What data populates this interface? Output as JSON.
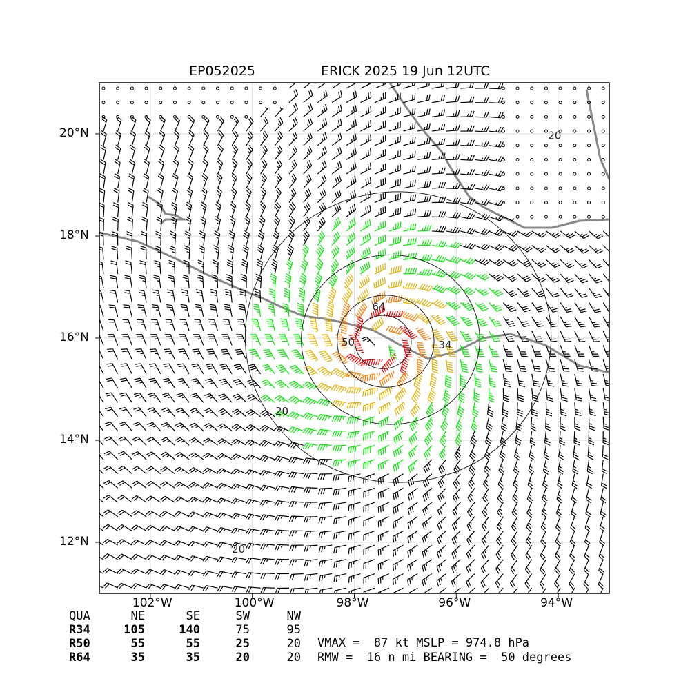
{
  "title": {
    "storm_id": "EP052025",
    "storm_label": "ERICK 2025 19 Jun 12UTC"
  },
  "map": {
    "extent": {
      "lon": [
        -103.0,
        -93.0
      ],
      "lat": [
        11.0,
        21.0
      ]
    },
    "lat_ticks": [
      {
        "value": 20,
        "label": "20°N"
      },
      {
        "value": 18,
        "label": "18°N"
      },
      {
        "value": 16,
        "label": "16°N"
      },
      {
        "value": 14,
        "label": "14°N"
      },
      {
        "value": 12,
        "label": "12°N"
      }
    ],
    "lon_ticks": [
      {
        "value": -102,
        "label": "102°W"
      },
      {
        "value": -100,
        "label": "100°W"
      },
      {
        "value": -98,
        "label": "98°W"
      },
      {
        "value": -96,
        "label": "96°W"
      },
      {
        "value": -94,
        "label": "94°W"
      }
    ],
    "grid": true,
    "coastline_color": "#888888",
    "storm_center": {
      "lon": -97.5,
      "lat": 15.9
    },
    "contours": [
      {
        "label": "64",
        "radius_deg": 0.55,
        "label_lon": -97.65,
        "label_lat": 16.55
      },
      {
        "label": "50",
        "radius_deg": 0.95,
        "label_lon": -98.25,
        "label_lat": 15.85
      },
      {
        "label": "34",
        "radius_deg": 1.75,
        "label_lon": -96.35,
        "label_lat": 15.8
      },
      {
        "label": "20",
        "radius_deg": 3.0,
        "label_lon": -99.55,
        "label_lat": 14.5
      },
      {
        "label": "20",
        "radius_deg": 0,
        "label_lon": -94.2,
        "label_lat": 19.9
      },
      {
        "label": "20",
        "radius_deg": 0,
        "label_lon": -100.4,
        "label_lat": 11.8
      }
    ],
    "barb_colors": {
      "calm": "#000000",
      "below_34": "#000000",
      "r34": "#00ee00",
      "r50": "#e6b000",
      "r64_low": "#ff7a00",
      "r64_high": "#ff0000"
    }
  },
  "wind_radii_table": {
    "headers": [
      "QUA",
      "NE",
      "SE",
      "SW",
      "NW"
    ],
    "rows": [
      {
        "label": "R34",
        "values": [
          "105",
          "140",
          "75",
          "95"
        ]
      },
      {
        "label": "R50",
        "values": [
          "55",
          "55",
          "25",
          "20"
        ]
      },
      {
        "label": "R64",
        "values": [
          "35",
          "35",
          "20",
          "20"
        ]
      }
    ]
  },
  "stats": {
    "line1": "VMAX =  87 kt MSLP = 974.8 hPa",
    "line2": "RMW =  16 n mi BEARING =  50 degrees"
  }
}
